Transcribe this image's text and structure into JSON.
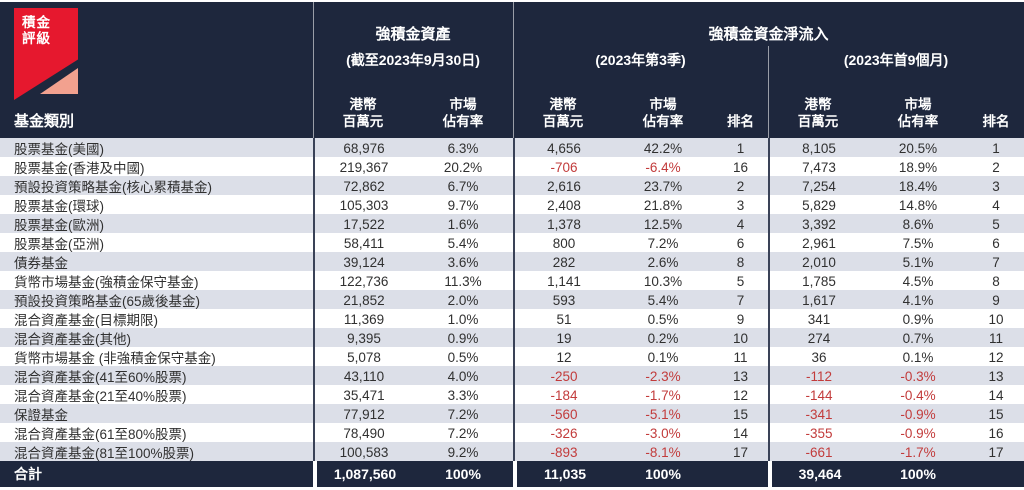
{
  "logo": {
    "line1": "積金",
    "line2": "評級",
    "bg_color": "#e6182e",
    "fold_color": "#f2a18f"
  },
  "header": {
    "category_label": "基金類別",
    "assets_group": {
      "title": "強積金資產",
      "subtitle": "(截至2023年9月30日)"
    },
    "netflow_group": {
      "title": "強積金資金淨流入",
      "q3_subtitle": "(2023年第3季)",
      "m9_subtitle": "(2023年首9個月)"
    },
    "col_hkd_l1": "港幣",
    "col_hkd_l2": "百萬元",
    "col_share_l1": "市場",
    "col_share_l2": "佔有率",
    "col_rank": "排名"
  },
  "colors": {
    "header_bg": "#1e273d",
    "band_row": "#dcdfe8",
    "negative_text": "#c23b3b",
    "divider": "#3a4257",
    "logo_red": "#e6182e",
    "logo_fold": "#f2a18f"
  },
  "table": {
    "rows": [
      {
        "name": "股票基金(美國)",
        "assets": "68,976",
        "assets_share": "6.3%",
        "q3": "4,656",
        "q3_share": "42.2%",
        "q3_rank": "1",
        "m9": "8,105",
        "m9_share": "20.5%",
        "m9_rank": "1"
      },
      {
        "name": "股票基金(香港及中國)",
        "assets": "219,367",
        "assets_share": "20.2%",
        "q3": "-706",
        "q3_share": "-6.4%",
        "q3_rank": "16",
        "m9": "7,473",
        "m9_share": "18.9%",
        "m9_rank": "2"
      },
      {
        "name": "預設投資策略基金(核心累積基金)",
        "assets": "72,862",
        "assets_share": "6.7%",
        "q3": "2,616",
        "q3_share": "23.7%",
        "q3_rank": "2",
        "m9": "7,254",
        "m9_share": "18.4%",
        "m9_rank": "3"
      },
      {
        "name": "股票基金(環球)",
        "assets": "105,303",
        "assets_share": "9.7%",
        "q3": "2,408",
        "q3_share": "21.8%",
        "q3_rank": "3",
        "m9": "5,829",
        "m9_share": "14.8%",
        "m9_rank": "4"
      },
      {
        "name": "股票基金(歐洲)",
        "assets": "17,522",
        "assets_share": "1.6%",
        "q3": "1,378",
        "q3_share": "12.5%",
        "q3_rank": "4",
        "m9": "3,392",
        "m9_share": "8.6%",
        "m9_rank": "5"
      },
      {
        "name": "股票基金(亞洲)",
        "assets": "58,411",
        "assets_share": "5.4%",
        "q3": "800",
        "q3_share": "7.2%",
        "q3_rank": "6",
        "m9": "2,961",
        "m9_share": "7.5%",
        "m9_rank": "6"
      },
      {
        "name": "債券基金",
        "assets": "39,124",
        "assets_share": "3.6%",
        "q3": "282",
        "q3_share": "2.6%",
        "q3_rank": "8",
        "m9": "2,010",
        "m9_share": "5.1%",
        "m9_rank": "7"
      },
      {
        "name": "貨幣市場基金(強積金保守基金)",
        "assets": "122,736",
        "assets_share": "11.3%",
        "q3": "1,141",
        "q3_share": "10.3%",
        "q3_rank": "5",
        "m9": "1,785",
        "m9_share": "4.5%",
        "m9_rank": "8"
      },
      {
        "name": "預設投資策略基金(65歲後基金)",
        "assets": "21,852",
        "assets_share": "2.0%",
        "q3": "593",
        "q3_share": "5.4%",
        "q3_rank": "7",
        "m9": "1,617",
        "m9_share": "4.1%",
        "m9_rank": "9"
      },
      {
        "name": "混合資產基金(目標期限)",
        "assets": "11,369",
        "assets_share": "1.0%",
        "q3": "51",
        "q3_share": "0.5%",
        "q3_rank": "9",
        "m9": "341",
        "m9_share": "0.9%",
        "m9_rank": "10"
      },
      {
        "name": "混合資產基金(其他)",
        "assets": "9,395",
        "assets_share": "0.9%",
        "q3": "19",
        "q3_share": "0.2%",
        "q3_rank": "10",
        "m9": "274",
        "m9_share": "0.7%",
        "m9_rank": "11"
      },
      {
        "name": "貨幣市場基金 (非強積金保守基金)",
        "assets": "5,078",
        "assets_share": "0.5%",
        "q3": "12",
        "q3_share": "0.1%",
        "q3_rank": "11",
        "m9": "36",
        "m9_share": "0.1%",
        "m9_rank": "12"
      },
      {
        "name": "混合資產基金(41至60%股票)",
        "assets": "43,110",
        "assets_share": "4.0%",
        "q3": "-250",
        "q3_share": "-2.3%",
        "q3_rank": "13",
        "m9": "-112",
        "m9_share": "-0.3%",
        "m9_rank": "13"
      },
      {
        "name": "混合資產基金(21至40%股票)",
        "assets": "35,471",
        "assets_share": "3.3%",
        "q3": "-184",
        "q3_share": "-1.7%",
        "q3_rank": "12",
        "m9": "-144",
        "m9_share": "-0.4%",
        "m9_rank": "14"
      },
      {
        "name": "保證基金",
        "assets": "77,912",
        "assets_share": "7.2%",
        "q3": "-560",
        "q3_share": "-5.1%",
        "q3_rank": "15",
        "m9": "-341",
        "m9_share": "-0.9%",
        "m9_rank": "15"
      },
      {
        "name": "混合資產基金(61至80%股票)",
        "assets": "78,490",
        "assets_share": "7.2%",
        "q3": "-326",
        "q3_share": "-3.0%",
        "q3_rank": "14",
        "m9": "-355",
        "m9_share": "-0.9%",
        "m9_rank": "16"
      },
      {
        "name": "混合資產基金(81至100%股票)",
        "assets": "100,583",
        "assets_share": "9.2%",
        "q3": "-893",
        "q3_share": "-8.1%",
        "q3_rank": "17",
        "m9": "-661",
        "m9_share": "-1.7%",
        "m9_rank": "17"
      }
    ],
    "total": {
      "label": "合計",
      "assets": "1,087,560",
      "assets_share": "100%",
      "q3": "11,035",
      "q3_share": "100%",
      "q3_rank": "",
      "m9": "39,464",
      "m9_share": "100%",
      "m9_rank": ""
    }
  },
  "chart_data": {
    "type": "table",
    "column_groups": [
      "強積金資產 (截至2023年9月30日)",
      "強積金資金淨流入 (2023年第3季)",
      "強積金資金淨流入 (2023年首9個月)"
    ],
    "columns": [
      "基金類別",
      "資產 港幣百萬元",
      "資產 市場佔有率 %",
      "第3季淨流入 港幣百萬元",
      "第3季淨流入 市場佔有率 %",
      "第3季 排名",
      "首9個月淨流入 港幣百萬元",
      "首9個月淨流入 市場佔有率 %",
      "首9個月 排名"
    ],
    "rows": [
      [
        "股票基金(美國)",
        68976,
        6.3,
        4656,
        42.2,
        1,
        8105,
        20.5,
        1
      ],
      [
        "股票基金(香港及中國)",
        219367,
        20.2,
        -706,
        -6.4,
        16,
        7473,
        18.9,
        2
      ],
      [
        "預設投資策略基金(核心累積基金)",
        72862,
        6.7,
        2616,
        23.7,
        2,
        7254,
        18.4,
        3
      ],
      [
        "股票基金(環球)",
        105303,
        9.7,
        2408,
        21.8,
        3,
        5829,
        14.8,
        4
      ],
      [
        "股票基金(歐洲)",
        17522,
        1.6,
        1378,
        12.5,
        4,
        3392,
        8.6,
        5
      ],
      [
        "股票基金(亞洲)",
        58411,
        5.4,
        800,
        7.2,
        6,
        2961,
        7.5,
        6
      ],
      [
        "債券基金",
        39124,
        3.6,
        282,
        2.6,
        8,
        2010,
        5.1,
        7
      ],
      [
        "貨幣市場基金(強積金保守基金)",
        122736,
        11.3,
        1141,
        10.3,
        5,
        1785,
        4.5,
        8
      ],
      [
        "預設投資策略基金(65歲後基金)",
        21852,
        2.0,
        593,
        5.4,
        7,
        1617,
        4.1,
        9
      ],
      [
        "混合資產基金(目標期限)",
        11369,
        1.0,
        51,
        0.5,
        9,
        341,
        0.9,
        10
      ],
      [
        "混合資產基金(其他)",
        9395,
        0.9,
        19,
        0.2,
        10,
        274,
        0.7,
        11
      ],
      [
        "貨幣市場基金 (非強積金保守基金)",
        5078,
        0.5,
        12,
        0.1,
        11,
        36,
        0.1,
        12
      ],
      [
        "混合資產基金(41至60%股票)",
        43110,
        4.0,
        -250,
        -2.3,
        13,
        -112,
        -0.3,
        13
      ],
      [
        "混合資產基金(21至40%股票)",
        35471,
        3.3,
        -184,
        -1.7,
        12,
        -144,
        -0.4,
        14
      ],
      [
        "保證基金",
        77912,
        7.2,
        -560,
        -5.1,
        15,
        -341,
        -0.9,
        15
      ],
      [
        "混合資產基金(61至80%股票)",
        78490,
        7.2,
        -326,
        -3.0,
        14,
        -355,
        -0.9,
        16
      ],
      [
        "混合資產基金(81至100%股票)",
        100583,
        9.2,
        -893,
        -8.1,
        17,
        -661,
        -1.7,
        17
      ]
    ],
    "total_row": [
      "合計",
      1087560,
      100,
      11035,
      100,
      null,
      39464,
      100,
      null
    ]
  }
}
